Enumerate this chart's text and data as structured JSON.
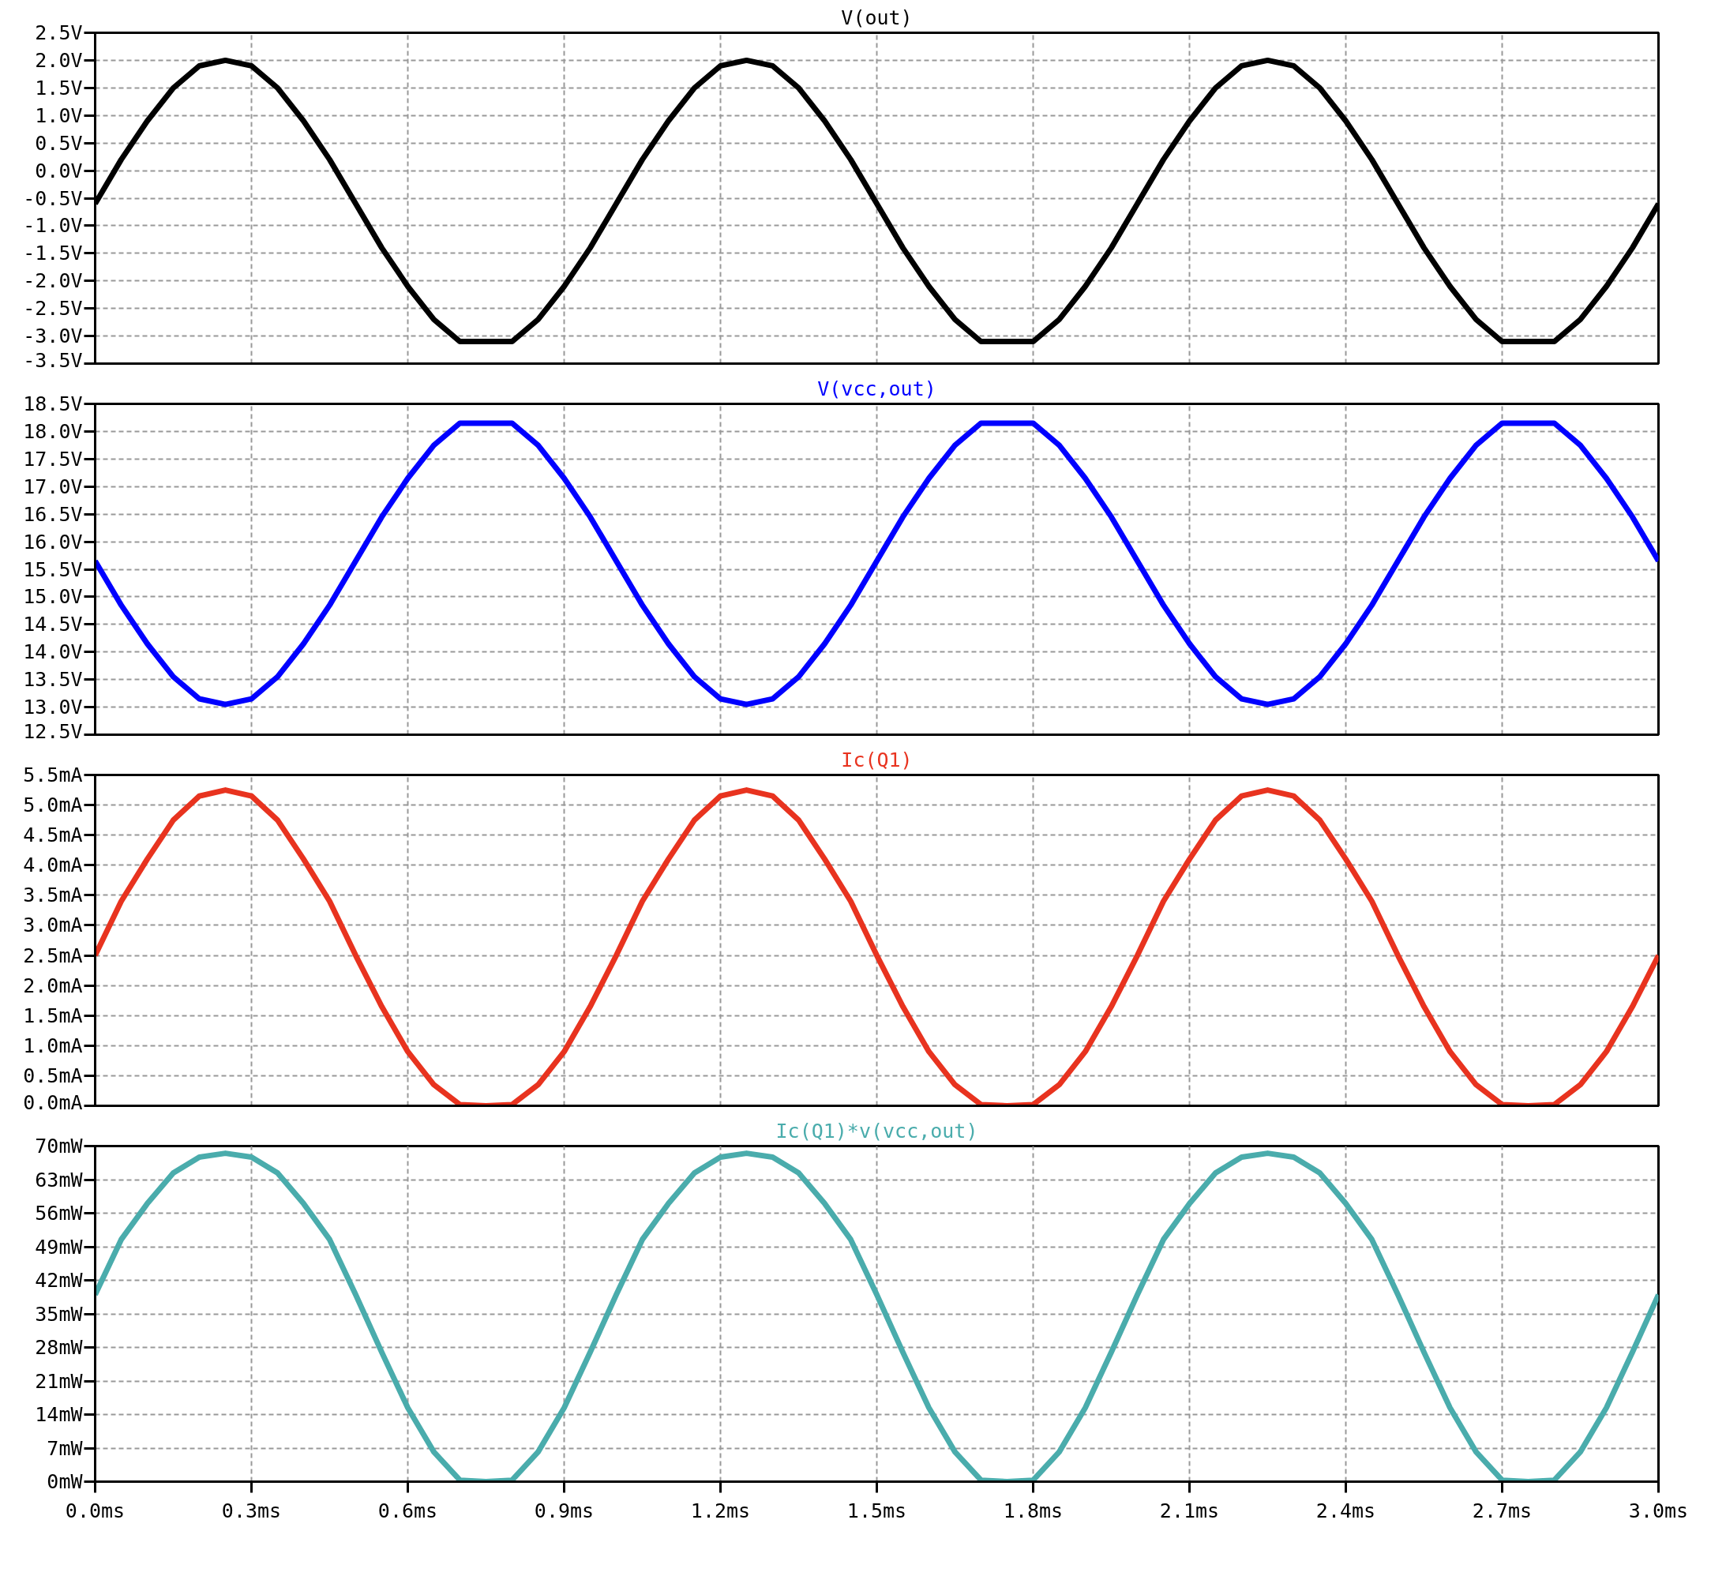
{
  "chart_data": [
    {
      "type": "line",
      "title": "V(out)",
      "tick_labels": "y",
      "grid": true,
      "x": [
        0,
        0.05,
        0.1,
        0.15,
        0.2,
        0.25,
        0.3,
        0.35,
        0.4,
        0.45,
        0.5,
        0.55,
        0.6,
        0.65,
        0.7,
        0.75,
        0.8,
        0.85,
        0.9,
        0.95,
        1.0,
        1.05,
        1.1,
        1.15,
        1.2,
        1.25,
        1.3,
        1.35,
        1.4,
        1.45,
        1.5,
        1.55,
        1.6,
        1.65,
        1.7,
        1.75,
        1.8,
        1.85,
        1.9,
        1.95,
        2.0,
        2.05,
        2.1,
        2.15,
        2.2,
        2.25,
        2.3,
        2.35,
        2.4,
        2.45,
        2.5,
        2.55,
        2.6,
        2.65,
        2.7,
        2.75,
        2.8,
        2.85,
        2.9,
        2.95,
        3.0
      ],
      "series": [
        {
          "color": "#000000",
          "values": [
            -0.6,
            0.2,
            0.9,
            1.5,
            1.9,
            2.0,
            1.9,
            1.5,
            0.9,
            0.2,
            -0.6,
            -1.4,
            -2.1,
            -2.7,
            -3.1,
            -3.1,
            -3.1,
            -2.7,
            -2.1,
            -1.4,
            -0.6,
            0.2,
            0.9,
            1.5,
            1.9,
            2.0,
            1.9,
            1.5,
            0.9,
            0.2,
            -0.6,
            -1.4,
            -2.1,
            -2.7,
            -3.1,
            -3.1,
            -3.1,
            -2.7,
            -2.1,
            -1.4,
            -0.6,
            0.2,
            0.9,
            1.5,
            1.9,
            2.0,
            1.9,
            1.5,
            0.9,
            0.2,
            -0.6,
            -1.4,
            -2.1,
            -2.7,
            -3.1,
            -3.1,
            -3.1,
            -2.7,
            -2.1,
            -1.4,
            -0.6
          ]
        }
      ],
      "xlim": [
        0,
        3
      ],
      "xticks": [
        {
          "value": 0,
          "label": null
        },
        {
          "value": 0.3,
          "label": null
        },
        {
          "value": 0.6,
          "label": null
        },
        {
          "value": 0.9,
          "label": null
        },
        {
          "value": 1.2,
          "label": null
        },
        {
          "value": 1.5,
          "label": null
        },
        {
          "value": 1.8,
          "label": null
        },
        {
          "value": 2.1,
          "label": null
        },
        {
          "value": 2.4,
          "label": null
        },
        {
          "value": 2.7,
          "label": null
        },
        {
          "value": 3.0,
          "label": null
        }
      ],
      "ylim": [
        -3.5,
        2.5
      ],
      "yticks": [
        {
          "value": -3.5,
          "label": "-3.5V"
        },
        {
          "value": -3.0,
          "label": "-3.0V"
        },
        {
          "value": -2.5,
          "label": "-2.5V"
        },
        {
          "value": -2.0,
          "label": "-2.0V"
        },
        {
          "value": -1.5,
          "label": "-1.5V"
        },
        {
          "value": -1.0,
          "label": "-1.0V"
        },
        {
          "value": -0.5,
          "label": "-0.5V"
        },
        {
          "value": 0,
          "label": "0.0V"
        },
        {
          "value": 0.5,
          "label": "0.5V"
        },
        {
          "value": 1.0,
          "label": "1.0V"
        },
        {
          "value": 1.5,
          "label": "1.5V"
        },
        {
          "value": 2.0,
          "label": "2.0V"
        },
        {
          "value": 2.5,
          "label": "2.5V"
        }
      ]
    },
    {
      "type": "line",
      "title": "V(vcc,out)",
      "tick_labels": "y",
      "grid": true,
      "x": [
        0,
        0.05,
        0.1,
        0.15,
        0.2,
        0.25,
        0.3,
        0.35,
        0.4,
        0.45,
        0.5,
        0.55,
        0.6,
        0.65,
        0.7,
        0.75,
        0.8,
        0.85,
        0.9,
        0.95,
        1.0,
        1.05,
        1.1,
        1.15,
        1.2,
        1.25,
        1.3,
        1.35,
        1.4,
        1.45,
        1.5,
        1.55,
        1.6,
        1.65,
        1.7,
        1.75,
        1.8,
        1.85,
        1.9,
        1.95,
        2.0,
        2.05,
        2.1,
        2.15,
        2.2,
        2.25,
        2.3,
        2.35,
        2.4,
        2.45,
        2.5,
        2.55,
        2.6,
        2.65,
        2.7,
        2.75,
        2.8,
        2.85,
        2.9,
        2.95,
        3.0
      ],
      "series": [
        {
          "color": "#0000ff",
          "values": [
            15.65,
            14.85,
            14.15,
            13.55,
            13.15,
            13.05,
            13.15,
            13.55,
            14.15,
            14.85,
            15.65,
            16.45,
            17.15,
            17.75,
            18.15,
            18.15,
            18.15,
            17.75,
            17.15,
            16.45,
            15.65,
            14.85,
            14.15,
            13.55,
            13.15,
            13.05,
            13.15,
            13.55,
            14.15,
            14.85,
            15.65,
            16.45,
            17.15,
            17.75,
            18.15,
            18.15,
            18.15,
            17.75,
            17.15,
            16.45,
            15.65,
            14.85,
            14.15,
            13.55,
            13.15,
            13.05,
            13.15,
            13.55,
            14.15,
            14.85,
            15.65,
            16.45,
            17.15,
            17.75,
            18.15,
            18.15,
            18.15,
            17.75,
            17.15,
            16.45,
            15.65
          ]
        }
      ],
      "xlim": [
        0,
        3
      ],
      "xticks": [
        {
          "value": 0,
          "label": null
        },
        {
          "value": 0.3,
          "label": null
        },
        {
          "value": 0.6,
          "label": null
        },
        {
          "value": 0.9,
          "label": null
        },
        {
          "value": 1.2,
          "label": null
        },
        {
          "value": 1.5,
          "label": null
        },
        {
          "value": 1.8,
          "label": null
        },
        {
          "value": 2.1,
          "label": null
        },
        {
          "value": 2.4,
          "label": null
        },
        {
          "value": 2.7,
          "label": null
        },
        {
          "value": 3.0,
          "label": null
        }
      ],
      "ylim": [
        12.5,
        18.5
      ],
      "yticks": [
        {
          "value": 12.5,
          "label": "12.5V"
        },
        {
          "value": 13.0,
          "label": "13.0V"
        },
        {
          "value": 13.5,
          "label": "13.5V"
        },
        {
          "value": 14.0,
          "label": "14.0V"
        },
        {
          "value": 14.5,
          "label": "14.5V"
        },
        {
          "value": 15.0,
          "label": "15.0V"
        },
        {
          "value": 15.5,
          "label": "15.5V"
        },
        {
          "value": 16.0,
          "label": "16.0V"
        },
        {
          "value": 16.5,
          "label": "16.5V"
        },
        {
          "value": 17.0,
          "label": "17.0V"
        },
        {
          "value": 17.5,
          "label": "17.5V"
        },
        {
          "value": 18.0,
          "label": "18.0V"
        },
        {
          "value": 18.5,
          "label": "18.5V"
        }
      ]
    },
    {
      "type": "line",
      "title": "Ic(Q1)",
      "tick_labels": "y",
      "grid": true,
      "x": [
        0,
        0.05,
        0.1,
        0.15,
        0.2,
        0.25,
        0.3,
        0.35,
        0.4,
        0.45,
        0.5,
        0.55,
        0.6,
        0.65,
        0.7,
        0.75,
        0.8,
        0.85,
        0.9,
        0.95,
        1.0,
        1.05,
        1.1,
        1.15,
        1.2,
        1.25,
        1.3,
        1.35,
        1.4,
        1.45,
        1.5,
        1.55,
        1.6,
        1.65,
        1.7,
        1.75,
        1.8,
        1.85,
        1.9,
        1.95,
        2.0,
        2.05,
        2.1,
        2.15,
        2.2,
        2.25,
        2.3,
        2.35,
        2.4,
        2.45,
        2.5,
        2.55,
        2.6,
        2.65,
        2.7,
        2.75,
        2.8,
        2.85,
        2.9,
        2.95,
        3.0
      ],
      "series": [
        {
          "color": "#e8331f",
          "values": [
            2.5,
            3.4,
            4.1,
            4.75,
            5.15,
            5.25,
            5.15,
            4.75,
            4.1,
            3.4,
            2.5,
            1.65,
            0.9,
            0.35,
            0.02,
            0,
            0.02,
            0.35,
            0.9,
            1.65,
            2.5,
            3.4,
            4.1,
            4.75,
            5.15,
            5.25,
            5.15,
            4.75,
            4.1,
            3.4,
            2.5,
            1.65,
            0.9,
            0.35,
            0.02,
            0,
            0.02,
            0.35,
            0.9,
            1.65,
            2.5,
            3.4,
            4.1,
            4.75,
            5.15,
            5.25,
            5.15,
            4.75,
            4.1,
            3.4,
            2.5,
            1.65,
            0.9,
            0.35,
            0.02,
            0,
            0.02,
            0.35,
            0.9,
            1.65,
            2.5
          ]
        }
      ],
      "xlim": [
        0,
        3
      ],
      "xticks": [
        {
          "value": 0,
          "label": null
        },
        {
          "value": 0.3,
          "label": null
        },
        {
          "value": 0.6,
          "label": null
        },
        {
          "value": 0.9,
          "label": null
        },
        {
          "value": 1.2,
          "label": null
        },
        {
          "value": 1.5,
          "label": null
        },
        {
          "value": 1.8,
          "label": null
        },
        {
          "value": 2.1,
          "label": null
        },
        {
          "value": 2.4,
          "label": null
        },
        {
          "value": 2.7,
          "label": null
        },
        {
          "value": 3.0,
          "label": null
        }
      ],
      "ylim": [
        0,
        5.5
      ],
      "yticks": [
        {
          "value": 0,
          "label": "0.0mA"
        },
        {
          "value": 0.5,
          "label": "0.5mA"
        },
        {
          "value": 1.0,
          "label": "1.0mA"
        },
        {
          "value": 1.5,
          "label": "1.5mA"
        },
        {
          "value": 2.0,
          "label": "2.0mA"
        },
        {
          "value": 2.5,
          "label": "2.5mA"
        },
        {
          "value": 3.0,
          "label": "3.0mA"
        },
        {
          "value": 3.5,
          "label": "3.5mA"
        },
        {
          "value": 4.0,
          "label": "4.0mA"
        },
        {
          "value": 4.5,
          "label": "4.5mA"
        },
        {
          "value": 5.0,
          "label": "5.0mA"
        },
        {
          "value": 5.5,
          "label": "5.5mA"
        }
      ]
    },
    {
      "type": "line",
      "title": "Ic(Q1)*v(vcc,out)",
      "grid": true,
      "x": [
        0,
        0.05,
        0.1,
        0.15,
        0.2,
        0.25,
        0.3,
        0.35,
        0.4,
        0.45,
        0.5,
        0.55,
        0.6,
        0.65,
        0.7,
        0.75,
        0.8,
        0.85,
        0.9,
        0.95,
        1.0,
        1.05,
        1.1,
        1.15,
        1.2,
        1.25,
        1.3,
        1.35,
        1.4,
        1.45,
        1.5,
        1.55,
        1.6,
        1.65,
        1.7,
        1.75,
        1.8,
        1.85,
        1.9,
        1.95,
        2.0,
        2.05,
        2.1,
        2.15,
        2.2,
        2.25,
        2.3,
        2.35,
        2.4,
        2.45,
        2.5,
        2.55,
        2.6,
        2.65,
        2.7,
        2.75,
        2.8,
        2.85,
        2.9,
        2.95,
        3.0
      ],
      "series": [
        {
          "color": "#4aacac",
          "values": [
            39,
            50.5,
            58,
            64.4,
            67.7,
            68.5,
            67.7,
            64.4,
            58,
            50.5,
            39,
            27,
            15.4,
            6.2,
            0.3,
            0,
            0.3,
            6.2,
            15.4,
            27,
            39,
            50.5,
            58,
            64.4,
            67.7,
            68.5,
            67.7,
            64.4,
            58,
            50.5,
            39,
            27,
            15.4,
            6.2,
            0.3,
            0,
            0.3,
            6.2,
            15.4,
            27,
            39,
            50.5,
            58,
            64.4,
            67.7,
            68.5,
            67.7,
            64.4,
            58,
            50.5,
            39,
            27,
            15.4,
            6.2,
            0.3,
            0,
            0.3,
            6.2,
            15.4,
            27,
            39
          ]
        }
      ],
      "xlim": [
        0,
        3
      ],
      "xticks": [
        {
          "value": 0,
          "label": "0.0ms"
        },
        {
          "value": 0.3,
          "label": "0.3ms"
        },
        {
          "value": 0.6,
          "label": "0.6ms"
        },
        {
          "value": 0.9,
          "label": "0.9ms"
        },
        {
          "value": 1.2,
          "label": "1.2ms"
        },
        {
          "value": 1.5,
          "label": "1.5ms"
        },
        {
          "value": 1.8,
          "label": "1.8ms"
        },
        {
          "value": 2.1,
          "label": "2.1ms"
        },
        {
          "value": 2.4,
          "label": "2.4ms"
        },
        {
          "value": 2.7,
          "label": "2.7ms"
        },
        {
          "value": 3.0,
          "label": "3.0ms"
        }
      ],
      "ylim": [
        0,
        70
      ],
      "yticks": [
        {
          "value": 0,
          "label": "0mW"
        },
        {
          "value": 7,
          "label": "7mW"
        },
        {
          "value": 14,
          "label": "14mW"
        },
        {
          "value": 21,
          "label": "21mW"
        },
        {
          "value": 28,
          "label": "28mW"
        },
        {
          "value": 35,
          "label": "35mW"
        },
        {
          "value": 42,
          "label": "42mW"
        },
        {
          "value": 49,
          "label": "49mW"
        },
        {
          "value": 56,
          "label": "56mW"
        },
        {
          "value": 63,
          "label": "63mW"
        },
        {
          "value": 70,
          "label": "70mW"
        }
      ]
    }
  ]
}
